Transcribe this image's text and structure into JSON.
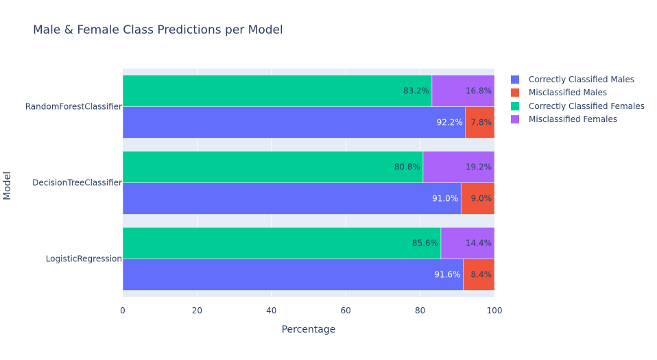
{
  "chart_data": {
    "type": "bar",
    "orientation": "horizontal",
    "barmode": "stack",
    "title": "Male & Female Class Predictions per Model",
    "xlabel": "Percentage",
    "ylabel": "Model",
    "xlim": [
      0,
      100
    ],
    "xticks": [
      "0",
      "20",
      "40",
      "60",
      "80",
      "100"
    ],
    "categories": [
      "LogisticRegression",
      "DecisionTreeClassifier",
      "RandomForestClassifier"
    ],
    "series": [
      {
        "name": "Correctly Classified Males",
        "group": "male",
        "color": "#636efa",
        "values": [
          91.6,
          91.0,
          92.2
        ],
        "labels": [
          "91.6%",
          "91.0%",
          "92.2%"
        ],
        "label_color": "#ffffff"
      },
      {
        "name": "Misclassified Males",
        "group": "male",
        "color": "#ef553b",
        "values": [
          8.4,
          9.0,
          7.8
        ],
        "labels": [
          "8.4%",
          "9.0%",
          "7.8%"
        ],
        "label_color": "#2a3f5f"
      },
      {
        "name": "Correctly Classified Females",
        "group": "female",
        "color": "#00cc96",
        "values": [
          85.6,
          80.8,
          83.2
        ],
        "labels": [
          "85.6%",
          "80.8%",
          "83.2%"
        ],
        "label_color": "#2a3f5f"
      },
      {
        "name": "Misclassified Females",
        "group": "female",
        "color": "#ab63fa",
        "values": [
          14.4,
          19.2,
          16.8
        ],
        "labels": [
          "14.4%",
          "19.2%",
          "16.8%"
        ],
        "label_color": "#2a3f5f"
      }
    ],
    "grid": true,
    "legend_position": "right"
  }
}
